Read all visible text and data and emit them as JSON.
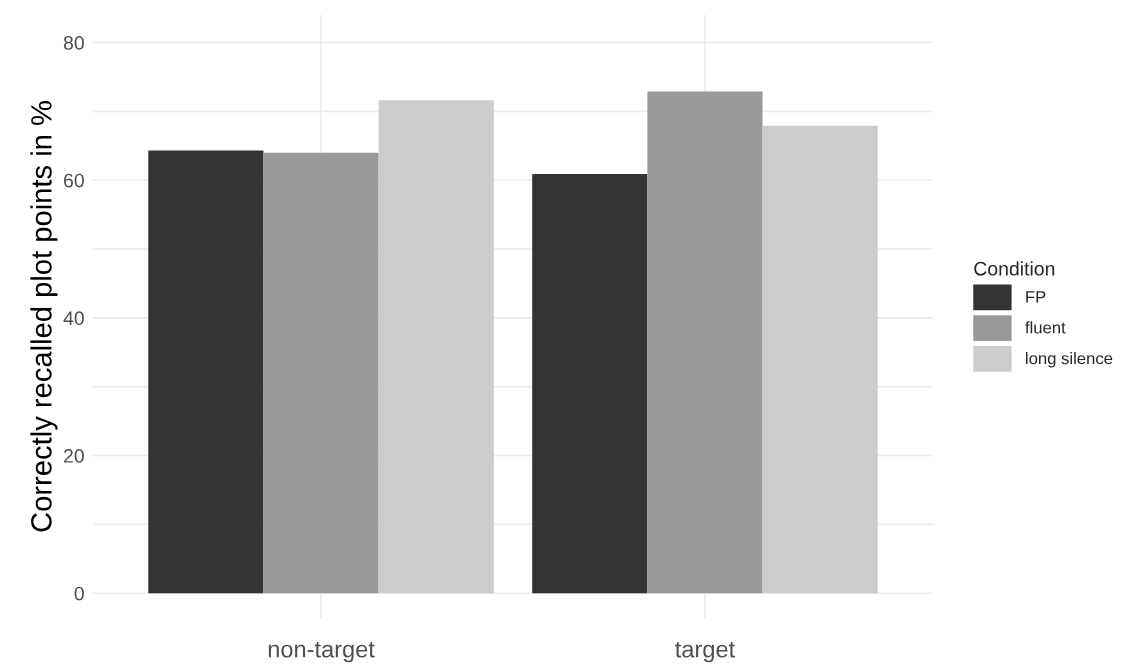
{
  "chart_data": {
    "type": "bar",
    "ylabel": "Correctly recalled plot points in %",
    "legend_title": "Condition",
    "categories": [
      "non-target",
      "target"
    ],
    "series": [
      {
        "name": "FP",
        "color": "#333333",
        "values": [
          64.3,
          60.9
        ]
      },
      {
        "name": "fluent",
        "color": "#999999",
        "values": [
          64.0,
          72.9
        ]
      },
      {
        "name": "long silence",
        "color": "#cccccc",
        "values": [
          71.6,
          67.9
        ]
      }
    ],
    "ylim": [
      -3.6,
      84
    ],
    "yticks": [
      0,
      {
        "value": 10,
        "label": null
      },
      20,
      {
        "value": 30,
        "label": null
      },
      40,
      {
        "value": 50,
        "label": null
      },
      60,
      {
        "value": 70,
        "label": null
      },
      80
    ],
    "grid": true,
    "legend": "right"
  }
}
